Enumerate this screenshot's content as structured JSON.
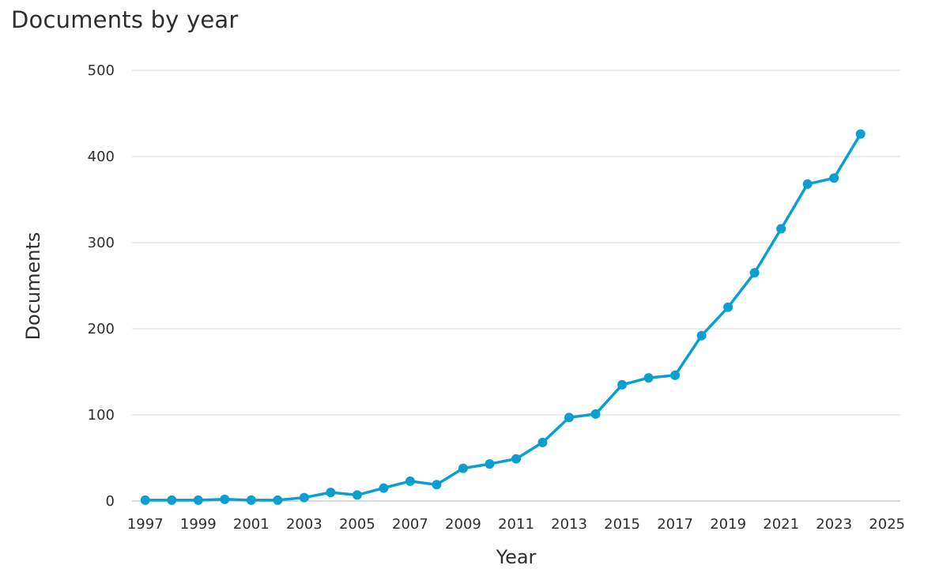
{
  "chart_data": {
    "type": "line",
    "title": "Documents by year",
    "xlabel": "Year",
    "ylabel": "Documents",
    "x": [
      1997,
      1998,
      1999,
      2000,
      2001,
      2002,
      2003,
      2004,
      2005,
      2006,
      2007,
      2008,
      2009,
      2010,
      2011,
      2012,
      2013,
      2014,
      2015,
      2016,
      2017,
      2018,
      2019,
      2020,
      2021,
      2022,
      2023,
      2024
    ],
    "series": [
      {
        "values": [
          1,
          1,
          1,
          2,
          1,
          1,
          4,
          10,
          7,
          15,
          23,
          19,
          38,
          43,
          49,
          68,
          97,
          101,
          135,
          143,
          146,
          192,
          225,
          265,
          316,
          368,
          375,
          426
        ]
      }
    ],
    "xlim": [
      1996.5,
      2025.5
    ],
    "ylim": [
      0,
      500
    ],
    "xticks": [
      1997,
      1999,
      2001,
      2003,
      2005,
      2007,
      2009,
      2011,
      2013,
      2015,
      2017,
      2019,
      2021,
      2023,
      2025
    ],
    "yticks": [
      0,
      100,
      200,
      300,
      400,
      500
    ],
    "grid": true,
    "colors": {
      "line": "#0a9fd0",
      "grid": "#d5d9df",
      "axis": "#c9cdd6"
    }
  }
}
